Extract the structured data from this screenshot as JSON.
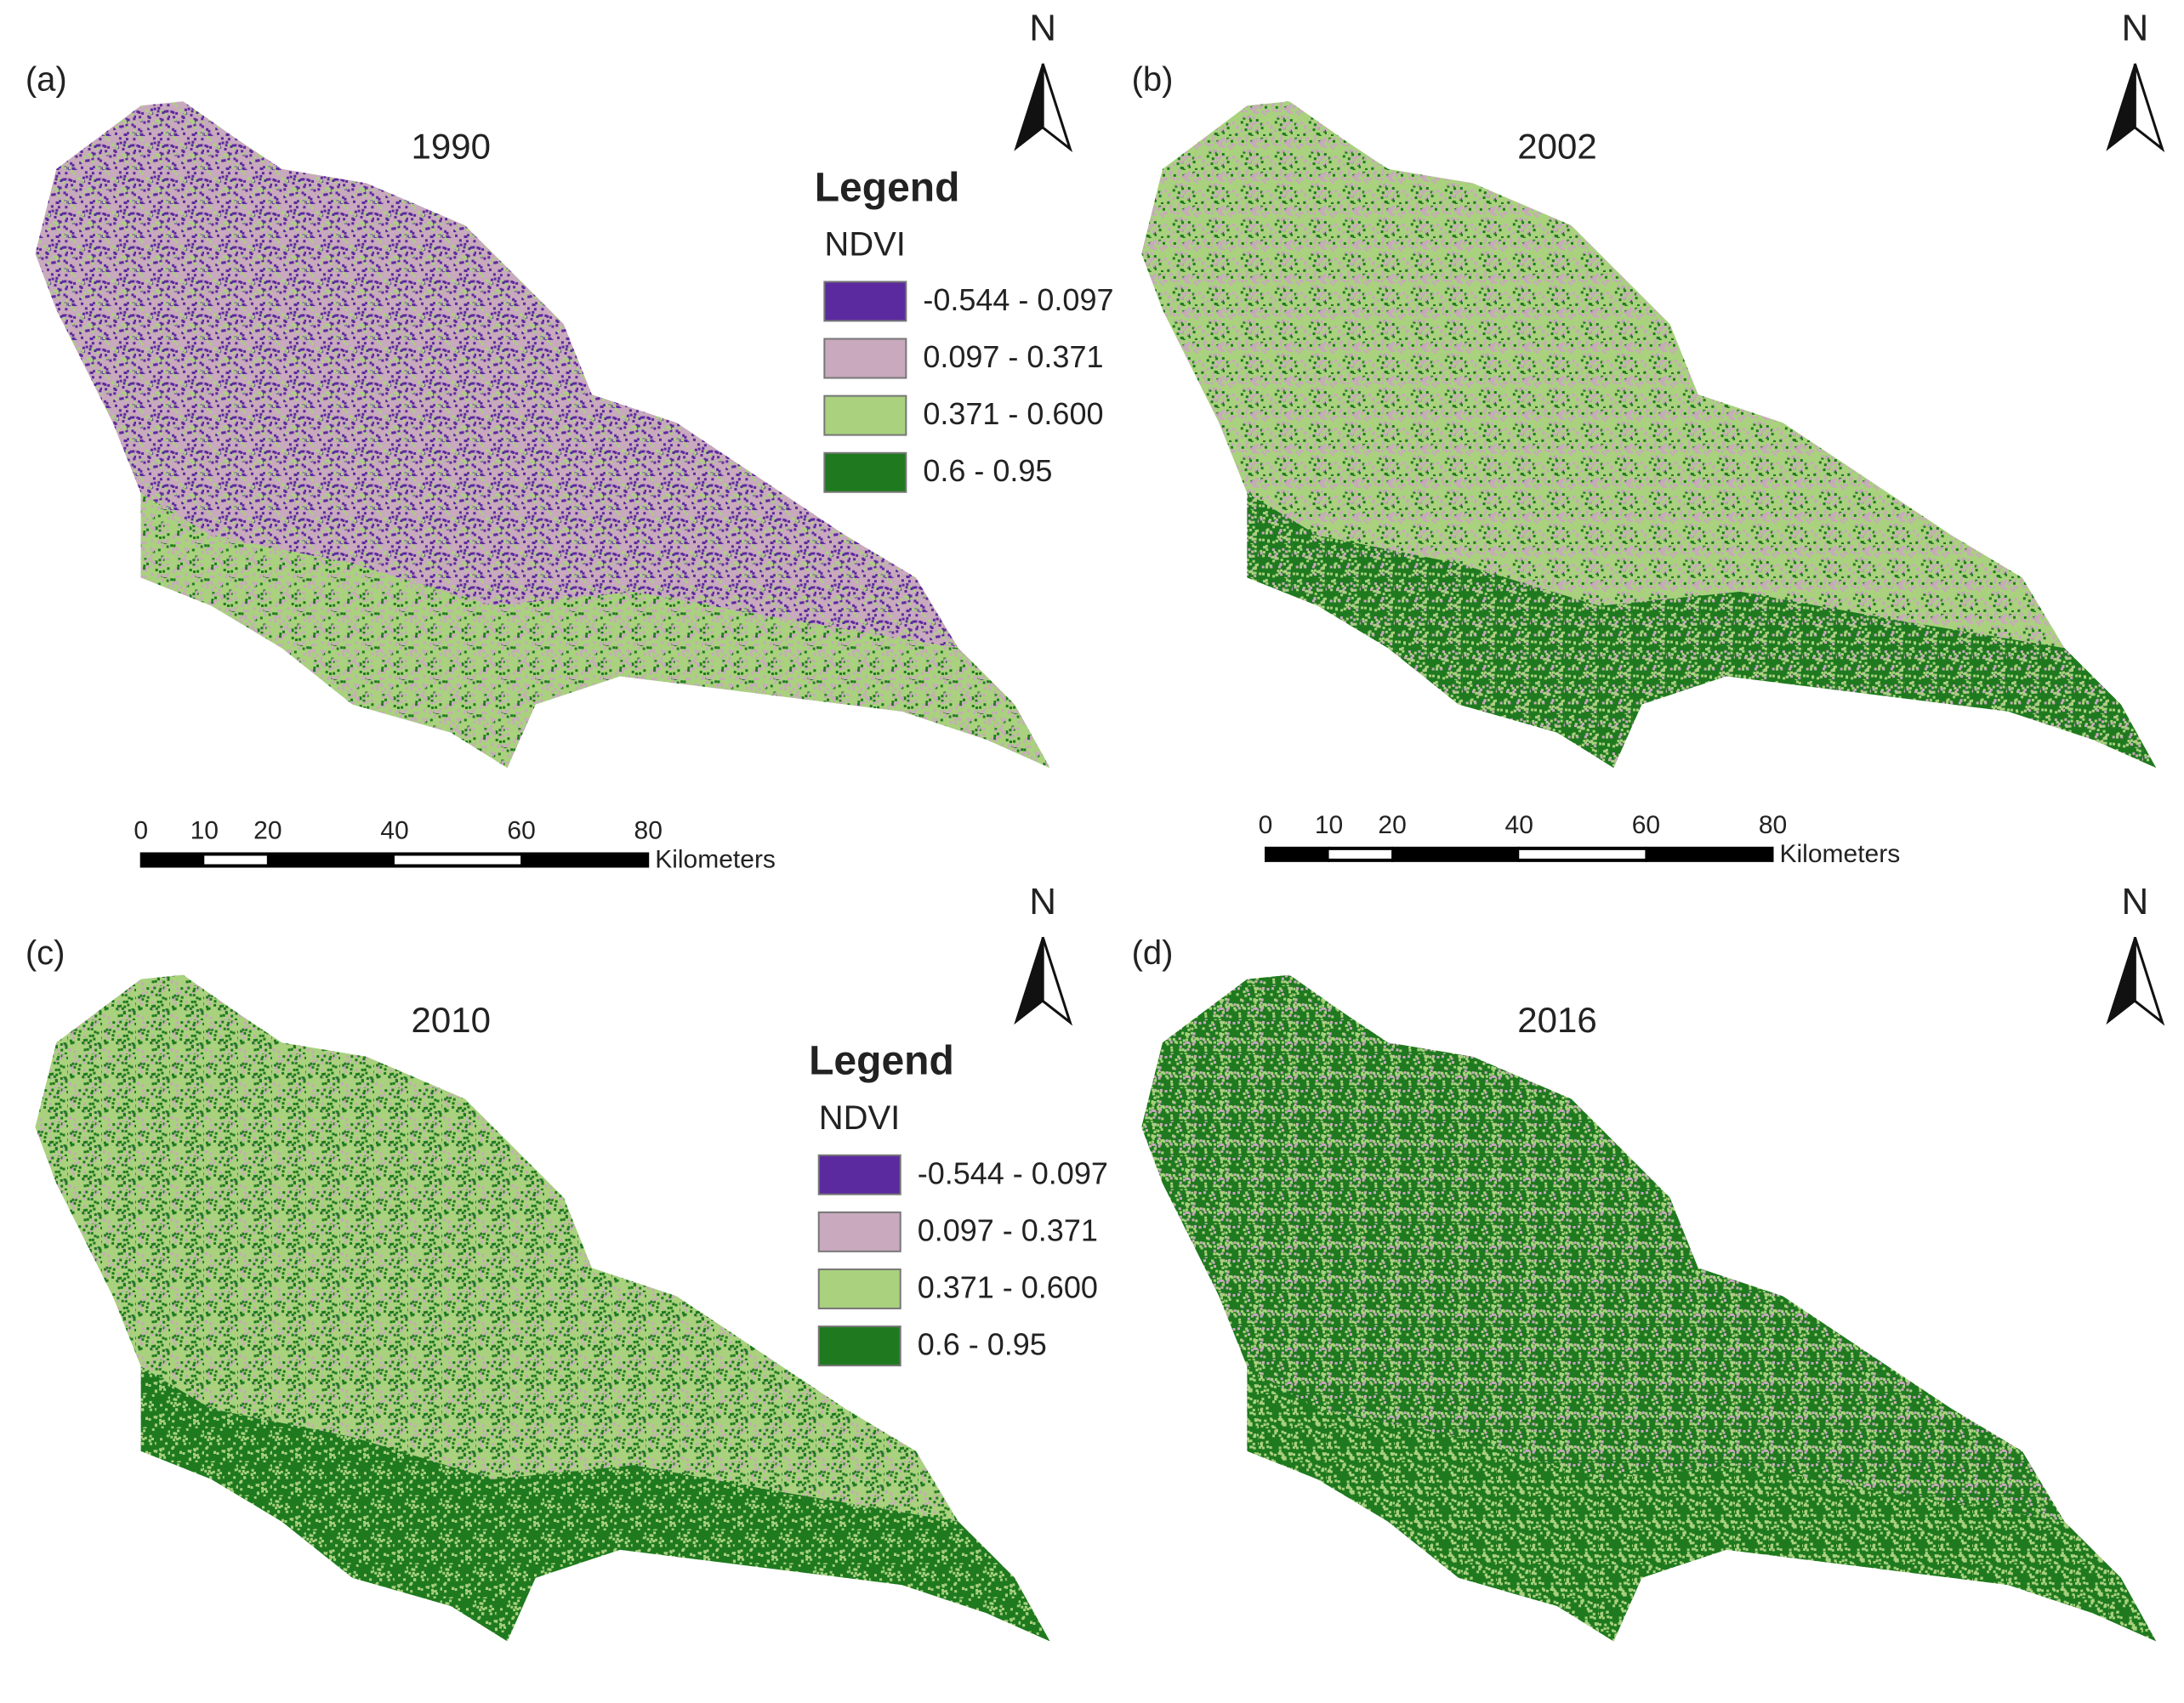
{
  "panels": [
    {
      "label": "(a)",
      "title": "1990"
    },
    {
      "label": "(b)",
      "title": "2002"
    },
    {
      "label": "(c)",
      "title": "2010"
    },
    {
      "label": "(d)",
      "title": "2016"
    }
  ],
  "north_arrows": [
    "N",
    "N",
    "N",
    "N"
  ],
  "legends": [
    {
      "title": "Legend",
      "field": "NDVI",
      "classes": [
        {
          "label": "-0.544 - 0.097",
          "color": "#5b2a9e"
        },
        {
          "label": "0.097 - 0.371",
          "color": "#c8a9bd"
        },
        {
          "label": "0.371 - 0.600",
          "color": "#a9d17e"
        },
        {
          "label": "0.6 - 0.95",
          "color": "#1f7a1f"
        }
      ]
    },
    {
      "title": "Legend",
      "field": "NDVI",
      "classes": [
        {
          "label": "-0.544 - 0.097",
          "color": "#5b2a9e"
        },
        {
          "label": "0.097 - 0.371",
          "color": "#c8a9bd"
        },
        {
          "label": "0.371 - 0.600",
          "color": "#a9d17e"
        },
        {
          "label": "0.6 - 0.95",
          "color": "#1f7a1f"
        }
      ]
    }
  ],
  "scale_bars": [
    {
      "ticks": [
        0,
        10,
        20,
        40,
        60,
        80
      ],
      "unit": "Kilometers"
    },
    {
      "ticks": [
        0,
        10,
        20,
        40,
        60,
        80
      ],
      "unit": "Kilometers"
    }
  ]
}
